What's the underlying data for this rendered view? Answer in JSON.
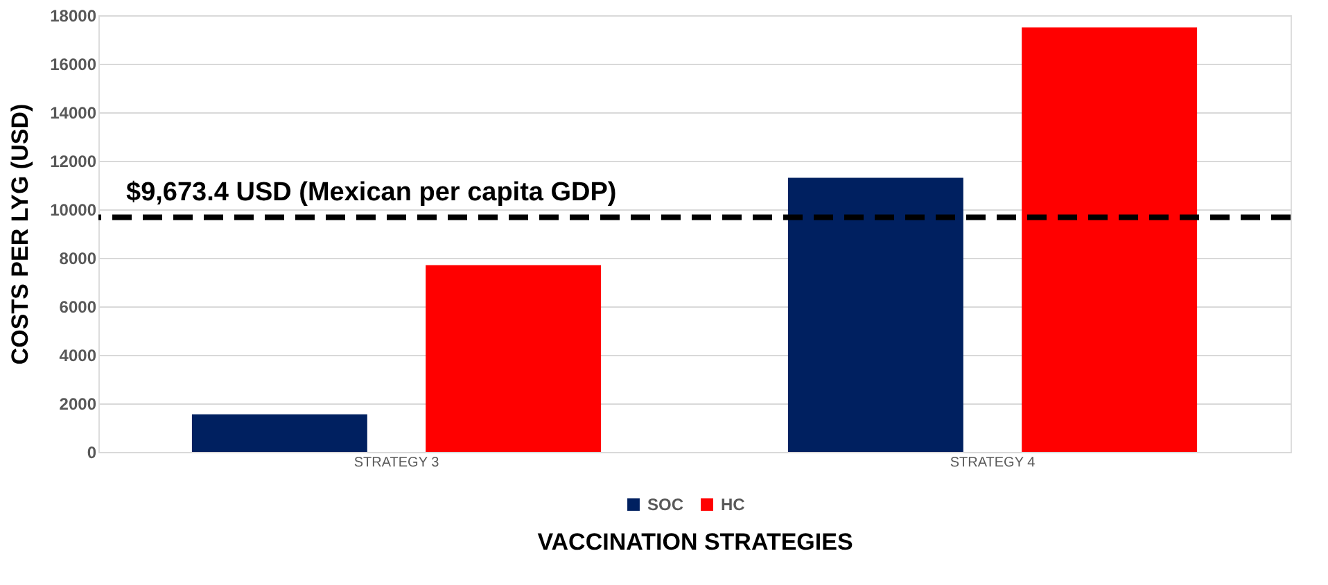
{
  "chart_data": {
    "type": "bar",
    "xlabel": "VACCINATION STRATEGIES",
    "ylabel": "COSTS PER LYG (USD)",
    "categories": [
      "STRATEGY 3",
      "STRATEGY 4"
    ],
    "series": [
      {
        "name": "SOC",
        "color": "#002060",
        "values": [
          1550,
          11300
        ]
      },
      {
        "name": "HC",
        "color": "#ff0000",
        "values": [
          7700,
          17500
        ]
      }
    ],
    "ylim": [
      0,
      18000
    ],
    "yticks": [
      0,
      2000,
      4000,
      6000,
      8000,
      10000,
      12000,
      14000,
      16000,
      18000
    ],
    "grid": "y",
    "legend": "bottom",
    "ref_lines": [
      {
        "axis": "y",
        "value": 9673.4,
        "label": "$9,673.4 USD (Mexican per capita GDP)",
        "color": "#000000",
        "line_style": "dashed"
      }
    ]
  }
}
